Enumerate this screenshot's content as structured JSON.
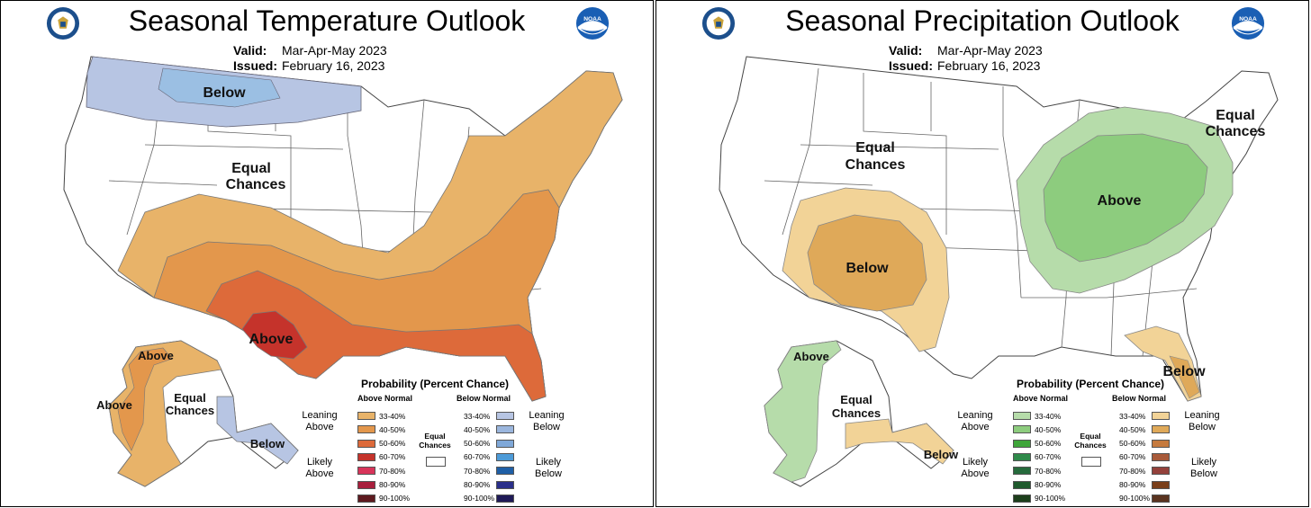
{
  "temperature": {
    "title": "Seasonal Temperature Outlook",
    "valid_label": "Valid:",
    "valid_value": "Mar-Apr-May 2023",
    "issued_label": "Issued:",
    "issued_value": "February 16, 2023",
    "regions": {
      "below_north": "Below",
      "equal_chances_1": "Equal",
      "equal_chances_2": "Chances",
      "above_south": "Above",
      "ak_above_north": "Above",
      "ak_above_west": "Above",
      "ak_equal_1": "Equal",
      "ak_equal_2": "Chances",
      "ak_below": "Below"
    },
    "legend": {
      "title": "Probability (Percent Chance)",
      "left_head": "Above Normal",
      "right_head": "Below Normal",
      "left_leaning": [
        "Leaning",
        "Above"
      ],
      "left_likely": [
        "Likely",
        "Above"
      ],
      "right_leaning": [
        "Leaning",
        "Below"
      ],
      "right_likely": [
        "Likely",
        "Below"
      ],
      "equal": [
        "Equal",
        "Chances"
      ],
      "ranges": [
        "33-40%",
        "40-50%",
        "50-60%",
        "60-70%",
        "70-80%",
        "80-90%",
        "90-100%"
      ],
      "left_colors": [
        "#e8b369",
        "#e3974c",
        "#dd6a3a",
        "#c5332b",
        "#d8345a",
        "#a81e3c",
        "#5e1a1f"
      ],
      "right_colors": [
        "#b7c5e3",
        "#9bb6dd",
        "#7fa8d8",
        "#4d9bd8",
        "#1f5fa6",
        "#2a2f8a",
        "#1f1a57"
      ]
    }
  },
  "precipitation": {
    "title": "Seasonal Precipitation Outlook",
    "valid_label": "Valid:",
    "valid_value": "Mar-Apr-May 2023",
    "issued_label": "Issued:",
    "issued_value": "February 16, 2023",
    "regions": {
      "equal_west_1": "Equal",
      "equal_west_2": "Chances",
      "below_sw": "Below",
      "above_ne": "Above",
      "equal_ne_1": "Equal",
      "equal_ne_2": "Chances",
      "below_fl": "Below",
      "ak_above": "Above",
      "ak_equal_1": "Equal",
      "ak_equal_2": "Chances",
      "ak_below": "Below"
    },
    "legend": {
      "title": "Probability (Percent Chance)",
      "left_head": "Above Normal",
      "right_head": "Below Normal",
      "left_leaning": [
        "Leaning",
        "Above"
      ],
      "left_likely": [
        "Likely",
        "Above"
      ],
      "right_leaning": [
        "Leaning",
        "Below"
      ],
      "right_likely": [
        "Likely",
        "Below"
      ],
      "equal": [
        "Equal",
        "Chances"
      ],
      "ranges": [
        "33-40%",
        "40-50%",
        "50-60%",
        "60-70%",
        "70-80%",
        "80-90%",
        "90-100%"
      ],
      "left_colors": [
        "#b6dcaa",
        "#8dcc7e",
        "#3fa63a",
        "#2f8a4a",
        "#266b3c",
        "#1f5a2d",
        "#1d3f1c"
      ],
      "right_colors": [
        "#f2d397",
        "#dfa959",
        "#c57a3e",
        "#a85a3a",
        "#94413b",
        "#7a3f1a",
        "#5a3420"
      ]
    }
  },
  "colors": {
    "temp_below": "#b7c5e3",
    "temp_below_dark": "#9bbfe3",
    "temp_above_33": "#e8b369",
    "temp_above_40": "#e3974c",
    "temp_above_50": "#dd6a3a",
    "temp_above_60": "#c5332b",
    "precip_above_33": "#b6dcaa",
    "precip_above_40": "#8dcc7e",
    "precip_below_33": "#f2d397",
    "precip_below_40": "#dfa959"
  },
  "icons": {
    "doc_logo": "commerce-seal-icon",
    "noaa_logo": "noaa-logo-icon"
  }
}
